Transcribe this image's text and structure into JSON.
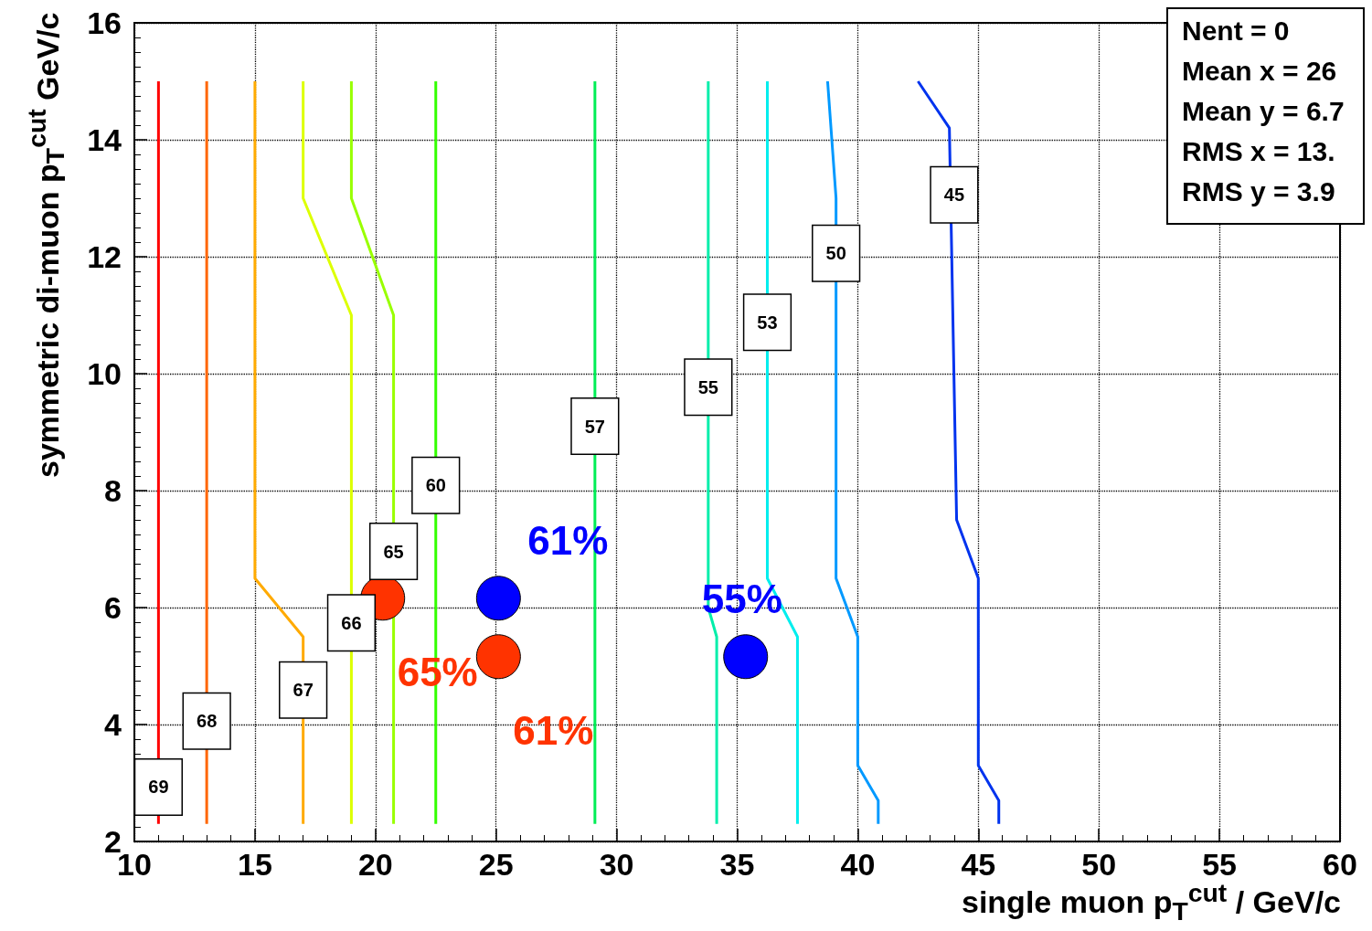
{
  "chart_data": {
    "type": "line",
    "xlabel": "single muon p$_{T}$$^{cut}$ / GeV/c",
    "ylabel": "symmetric di-muon p$_{T}$$^{cut}$ GeV/c",
    "xlim": [
      10,
      60
    ],
    "ylim": [
      2,
      16
    ],
    "xticks": [
      10,
      15,
      20,
      25,
      30,
      35,
      40,
      45,
      50,
      55,
      60
    ],
    "yticks": [
      2,
      4,
      6,
      8,
      10,
      12,
      14,
      16
    ],
    "grid": true,
    "line_style": "solid",
    "series": [
      {
        "color": "#ff0000",
        "x": [
          11,
          11
        ],
        "values": [
          15,
          2.3
        ]
      },
      {
        "color": "#ff6600",
        "x": [
          13,
          13
        ],
        "values": [
          15,
          2.3
        ]
      },
      {
        "color": "#ffaa00",
        "x": [
          15,
          15,
          17,
          17
        ],
        "values": [
          15,
          6.5,
          5.5,
          2.3
        ]
      },
      {
        "color": "#ddff00",
        "x": [
          17,
          17,
          19,
          19
        ],
        "values": [
          15,
          13,
          11,
          2.3
        ]
      },
      {
        "color": "#99ff00",
        "x": [
          19,
          19,
          20.75,
          20.75
        ],
        "values": [
          15,
          13,
          11,
          2.3
        ]
      },
      {
        "color": "#33ff00",
        "x": [
          22.5,
          22.5
        ],
        "values": [
          15,
          2.3
        ]
      },
      {
        "color": "#00ee55",
        "x": [
          29.1,
          29.1
        ],
        "values": [
          15,
          2.3
        ]
      },
      {
        "color": "#00eeaa",
        "x": [
          33.8,
          33.8,
          34.15,
          34.15
        ],
        "values": [
          15,
          6,
          5.5,
          2.3
        ]
      },
      {
        "color": "#00eeee",
        "x": [
          36.25,
          36.25,
          37.5,
          37.5
        ],
        "values": [
          15,
          6.5,
          5.5,
          2.3
        ]
      },
      {
        "color": "#0099ff",
        "x": [
          38.75,
          39.1,
          39.1,
          40,
          40,
          40.85,
          40.85
        ],
        "values": [
          15,
          13,
          6.5,
          5.5,
          3.3,
          2.7,
          2.3
        ]
      },
      {
        "color": "#0033ee",
        "x": [
          42.5,
          43.8,
          44.1,
          45,
          45,
          45.85,
          45.85
        ],
        "values": [
          15,
          14.2,
          7.5,
          6.5,
          3.3,
          2.7,
          2.3
        ]
      },
      {
        "type": "scatter",
        "color": "#ff3300",
        "x": [
          20.3,
          25.1
        ],
        "values": [
          6.16,
          5.16
        ]
      },
      {
        "type": "scatter",
        "color": "#0000ff",
        "x": [
          25.1,
          35.35
        ],
        "values": [
          6.16,
          5.16
        ]
      }
    ],
    "annotations": [
      {
        "text": "69",
        "x": 11,
        "y": 2.93
      },
      {
        "text": "68",
        "x": 13,
        "y": 4.06
      },
      {
        "text": "67",
        "x": 17,
        "y": 4.59
      },
      {
        "text": "66",
        "x": 19,
        "y": 5.74
      },
      {
        "text": "65",
        "x": 20.75,
        "y": 6.96
      },
      {
        "text": "60",
        "x": 22.5,
        "y": 8.09
      },
      {
        "text": "57",
        "x": 29.1,
        "y": 9.1
      },
      {
        "text": "55",
        "x": 33.8,
        "y": 9.77
      },
      {
        "text": "53",
        "x": 36.25,
        "y": 10.88
      },
      {
        "text": "50",
        "x": 39.1,
        "y": 12.06
      },
      {
        "text": "45",
        "x": 44,
        "y": 13.06
      },
      {
        "text": "65%",
        "x": 20.3,
        "y": 6.16
      },
      {
        "text": "61%",
        "x": 25.1,
        "y": 5.16
      },
      {
        "text": "61%",
        "x": 25.1,
        "y": 6.16
      },
      {
        "text": "55%",
        "x": 35.35,
        "y": 5.16
      },
      "Nent = 0",
      "Mean x = 26",
      "Mean y = 6.7",
      "RMS x = 13.",
      "RMS y = 3.9"
    ]
  }
}
